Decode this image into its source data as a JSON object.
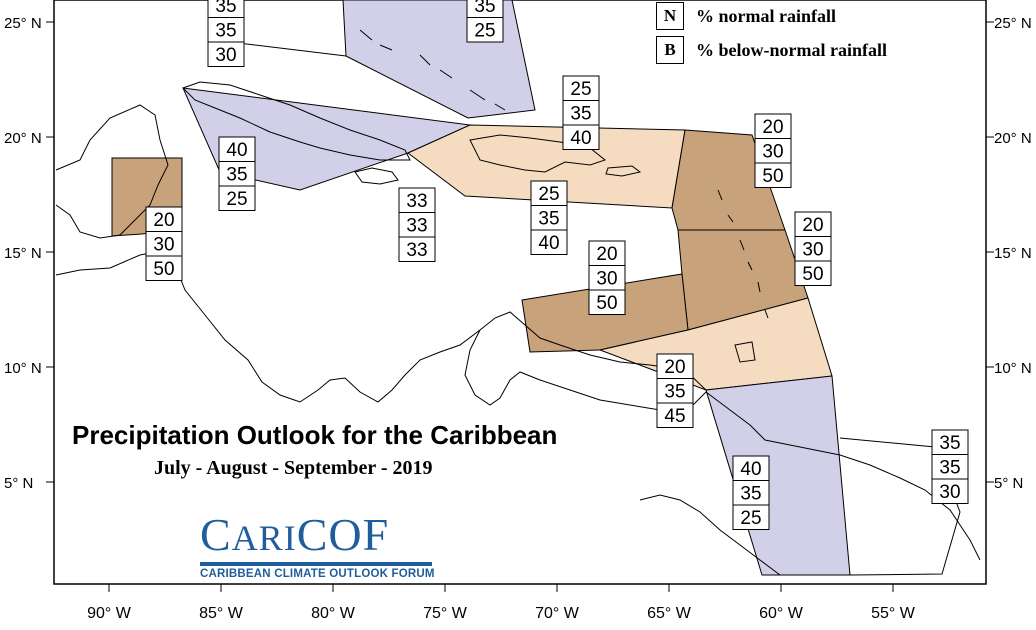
{
  "title": "Precipitation Outlook for the Caribbean",
  "subtitle": "July - August - September - 2019",
  "logo": {
    "name_a": "C",
    "name_b": "ARI",
    "name_c": "COF",
    "full_name": "CARIBBEAN CLIMATE OUTLOOK FORUM"
  },
  "legend": [
    {
      "key": "N",
      "text": "% normal rainfall"
    },
    {
      "key": "B",
      "text": "% below-normal rainfall"
    }
  ],
  "lon_labels": [
    "90° W",
    "85° W",
    "80° W",
    "75° W",
    "70° W",
    "65° W",
    "60° W",
    "55° W"
  ],
  "lat_labels": [
    "25° N",
    "20° N",
    "15° N",
    "10° N",
    "5° N"
  ],
  "colors": {
    "below_strong": "#c8a27a",
    "below_light": "#f5dcc0",
    "above_light": "#d2d0e8",
    "logo_blue": "#1f5d9c"
  },
  "probability_boxes": [
    {
      "name": "prob-box-top-left",
      "values": [
        "35",
        "35",
        "30"
      ]
    },
    {
      "name": "prob-box-bahamas",
      "values": [
        "35",
        "25"
      ]
    },
    {
      "name": "prob-box-cuba-west",
      "values": [
        "40",
        "35",
        "25"
      ]
    },
    {
      "name": "prob-box-belize",
      "values": [
        "20",
        "30",
        "50"
      ]
    },
    {
      "name": "prob-box-jamaica",
      "values": [
        "33",
        "33",
        "33"
      ]
    },
    {
      "name": "prob-box-turks",
      "values": [
        "25",
        "35",
        "40"
      ]
    },
    {
      "name": "prob-box-hispaniola",
      "values": [
        "25",
        "35",
        "40"
      ]
    },
    {
      "name": "prob-box-leeward",
      "values": [
        "20",
        "30",
        "50"
      ]
    },
    {
      "name": "prob-box-windward",
      "values": [
        "20",
        "30",
        "50"
      ]
    },
    {
      "name": "prob-box-abc",
      "values": [
        "20",
        "30",
        "50"
      ]
    },
    {
      "name": "prob-box-trinidad",
      "values": [
        "20",
        "35",
        "45"
      ]
    },
    {
      "name": "prob-box-guyana",
      "values": [
        "40",
        "35",
        "25"
      ]
    },
    {
      "name": "prob-box-suriname",
      "values": [
        "35",
        "35",
        "30"
      ]
    }
  ]
}
